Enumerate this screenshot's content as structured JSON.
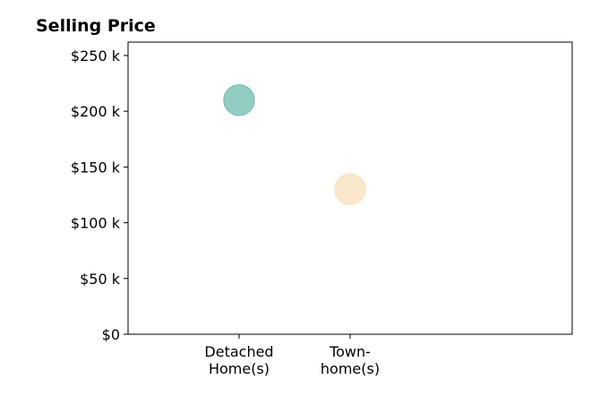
{
  "chart_data": {
    "type": "scatter",
    "title": "Selling Price",
    "xlabel": "",
    "ylabel": "",
    "categories": [
      {
        "lines": [
          "Detached",
          "Home(s)"
        ]
      },
      {
        "lines": [
          "Town-",
          "home(s)"
        ]
      }
    ],
    "values": [
      210000,
      130000
    ],
    "point_colors": [
      "#7fc4b8",
      "#f8e4c0"
    ],
    "ylim": [
      0,
      262000
    ],
    "yticks": [
      {
        "value": 0,
        "label": "$0"
      },
      {
        "value": 50000,
        "label": "$50 k"
      },
      {
        "value": 100000,
        "label": "$100 k"
      },
      {
        "value": 150000,
        "label": "$150 k"
      },
      {
        "value": 200000,
        "label": "$200 k"
      },
      {
        "value": 250000,
        "label": "$250 k"
      }
    ],
    "grid": false,
    "legend": "none"
  }
}
